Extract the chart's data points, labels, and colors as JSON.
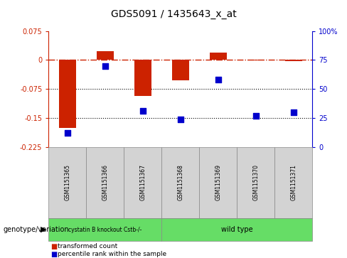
{
  "title": "GDS5091 / 1435643_x_at",
  "samples": [
    "GSM1151365",
    "GSM1151366",
    "GSM1151367",
    "GSM1151368",
    "GSM1151369",
    "GSM1151370",
    "GSM1151371"
  ],
  "red_values": [
    -0.175,
    0.022,
    -0.093,
    -0.053,
    0.02,
    -0.002,
    -0.003
  ],
  "blue_percentiles": [
    12,
    70,
    31,
    24,
    58,
    27,
    30
  ],
  "ylim_left": [
    -0.225,
    0.075
  ],
  "ylim_right": [
    0,
    100
  ],
  "yticks_left": [
    0.075,
    0,
    -0.075,
    -0.15,
    -0.225
  ],
  "yticks_right": [
    100,
    75,
    50,
    25,
    0
  ],
  "bar_color": "#cc2200",
  "dot_color": "#0000cc",
  "group1_label": "cystatin B knockout Cstb-/-",
  "group2_label": "wild type",
  "group1_count": 3,
  "group2_count": 4,
  "group_color": "#66dd66",
  "genotype_label": "genotype/variation",
  "legend_red": "transformed count",
  "legend_blue": "percentile rank within the sample"
}
